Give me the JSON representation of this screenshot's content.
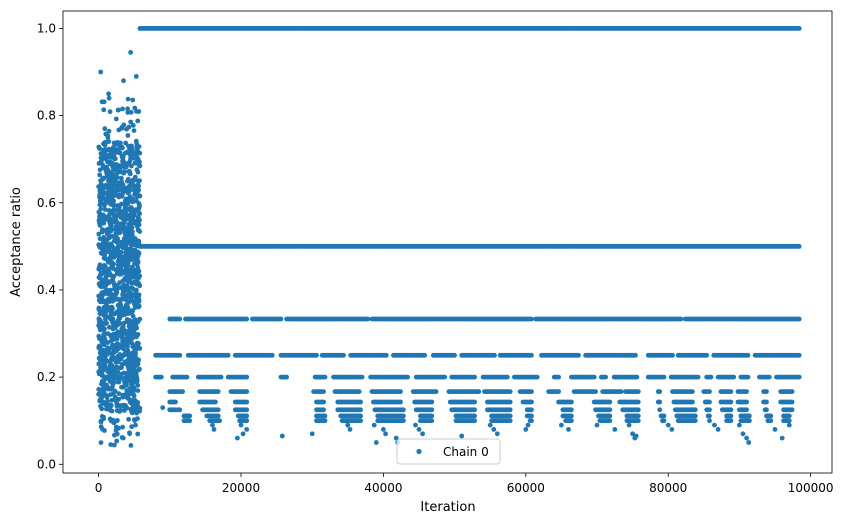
{
  "chart_data": {
    "type": "scatter",
    "title": "",
    "xlabel": "Iteration",
    "ylabel": "Acceptance ratio",
    "xlim": [
      -5000,
      103000
    ],
    "ylim": [
      -0.02,
      1.04
    ],
    "xticks": [
      0,
      20000,
      40000,
      60000,
      80000,
      100000
    ],
    "xtick_labels": [
      "0",
      "20000",
      "40000",
      "60000",
      "80000",
      "100000"
    ],
    "yticks": [
      0.0,
      0.2,
      0.4,
      0.6,
      0.8,
      1.0
    ],
    "ytick_labels": [
      "0.0",
      "0.2",
      "0.4",
      "0.6",
      "0.8",
      "1.0"
    ],
    "grid": false,
    "legend": {
      "position": "lower-center",
      "entries": [
        "Chain 0"
      ]
    },
    "series": [
      {
        "name": "Chain 0",
        "color": "#1f77b4",
        "marker": "point",
        "burn_in": {
          "x_range": [
            0,
            5800
          ],
          "y_range": [
            0.04,
            0.94
          ],
          "outliers": [
            [
              300,
              0.9
            ],
            [
              3500,
              0.88
            ],
            [
              4500,
              0.945
            ],
            [
              5300,
              0.89
            ],
            [
              1400,
              0.85
            ]
          ]
        },
        "levels": [
          {
            "y": 1.0,
            "x_range": [
              5800,
              98500
            ],
            "gaps": []
          },
          {
            "y": 0.5,
            "x_range": [
              5800,
              98500
            ],
            "gaps": []
          },
          {
            "y": 0.3333,
            "x_range": [
              10000,
              98500
            ],
            "gaps": [
              [
                11500,
                12000
              ],
              [
                21000,
                21500
              ],
              [
                25800,
                26200
              ],
              [
                38000,
                38300
              ],
              [
                61000,
                61300
              ],
              [
                82000,
                82300
              ]
            ]
          },
          {
            "y": 0.25,
            "x_range": [
              8000,
              98500
            ],
            "gaps": [
              [
                11500,
                12500
              ],
              [
                18300,
                19000
              ],
              [
                24500,
                25500
              ],
              [
                30800,
                31200
              ],
              [
                34600,
                35200
              ],
              [
                40600,
                41200
              ],
              [
                46000,
                46800
              ],
              [
                50200,
                50800
              ],
              [
                55800,
                56300
              ],
              [
                61000,
                62000
              ],
              [
                67600,
                68200
              ],
              [
                75600,
                77000
              ],
              [
                80800,
                81300
              ],
              [
                85600,
                86200
              ],
              [
                91400,
                92000
              ]
            ]
          },
          {
            "y": 0.2,
            "x_range": [
              8000,
              98500
            ],
            "gaps": [
              [
                9000,
                10200
              ],
              [
                12500,
                13800
              ],
              [
                17300,
                18000
              ],
              [
                20900,
                25500
              ],
              [
                26500,
                30200
              ],
              [
                32000,
                32800
              ],
              [
                37200,
                38000
              ],
              [
                43600,
                44500
              ],
              [
                48800,
                49500
              ],
              [
                53000,
                53800
              ],
              [
                57600,
                58300
              ],
              [
                61700,
                63800
              ],
              [
                64700,
                66200
              ],
              [
                69800,
                70400
              ],
              [
                71300,
                72200
              ],
              [
                75800,
                77000
              ],
              [
                79600,
                80200
              ],
              [
                84300,
                85300
              ],
              [
                86200,
                86800
              ],
              [
                89400,
                90000
              ],
              [
                91300,
                92700
              ],
              [
                94300,
                95000
              ]
            ]
          },
          {
            "y": 0.1667,
            "x_range": [
              10000,
              97500
            ],
            "gaps": [
              [
                12000,
                14000
              ],
              [
                17000,
                18500
              ],
              [
                21000,
                30000
              ],
              [
                31800,
                33000
              ],
              [
                36800,
                38200
              ],
              [
                42500,
                44000
              ],
              [
                47500,
                49000
              ],
              [
                53500,
                54000
              ],
              [
                58000,
                59000
              ],
              [
                61000,
                63000
              ],
              [
                64800,
                66600
              ],
              [
                70000,
                70600
              ],
              [
                73500,
                73900
              ],
              [
                76000,
                78400
              ],
              [
                79000,
                80500
              ],
              [
                83600,
                84800
              ],
              [
                86000,
                87200
              ],
              [
                89000,
                89600
              ],
              [
                91200,
                93200
              ],
              [
                94000,
                95600
              ]
            ]
          },
          {
            "y": 0.1429,
            "x_range": [
              10000,
              97500
            ],
            "gaps": [
              [
                11000,
                14000
              ],
              [
                16500,
                19000
              ],
              [
                21000,
                30500
              ],
              [
                31800,
                33500
              ],
              [
                37000,
                38500
              ],
              [
                42500,
                44200
              ],
              [
                47000,
                49200
              ],
              [
                53000,
                54500
              ],
              [
                58000,
                59500
              ],
              [
                61000,
                64500
              ],
              [
                66500,
                69500
              ],
              [
                72000,
                73000
              ],
              [
                76000,
                78400
              ],
              [
                79000,
                80600
              ],
              [
                83600,
                85000
              ],
              [
                86000,
                87300
              ],
              [
                89000,
                89600
              ],
              [
                91200,
                93300
              ],
              [
                94000,
                95600
              ]
            ]
          },
          {
            "y": 0.125,
            "x_range": [
              10000,
              97500
            ],
            "gaps": [
              [
                11500,
                14500
              ],
              [
                17000,
                19000
              ],
              [
                21000,
                30500
              ],
              [
                31800,
                33500
              ],
              [
                37000,
                38700
              ],
              [
                43000,
                44500
              ],
              [
                47000,
                49500
              ],
              [
                53000,
                54500
              ],
              [
                58000,
                60000
              ],
              [
                61000,
                65000
              ],
              [
                66500,
                69700
              ],
              [
                72000,
                73500
              ],
              [
                76000,
                78600
              ],
              [
                79000,
                80800
              ],
              [
                84000,
                85200
              ],
              [
                86000,
                87500
              ],
              [
                89000,
                89800
              ],
              [
                91200,
                93500
              ],
              [
                94000,
                96000
              ]
            ]
          },
          {
            "y": 0.1111,
            "x_range": [
              12000,
              97000
            ],
            "gaps": [
              [
                13000,
                15000
              ],
              [
                17000,
                19500
              ],
              [
                21000,
                30500
              ],
              [
                32000,
                33800
              ],
              [
                37000,
                39000
              ],
              [
                43000,
                45000
              ],
              [
                47000,
                50000
              ],
              [
                53000,
                55000
              ],
              [
                58000,
                60000
              ],
              [
                61000,
                65000
              ],
              [
                66500,
                70000
              ],
              [
                72000,
                74000
              ],
              [
                76000,
                78800
              ],
              [
                79500,
                81000
              ],
              [
                84000,
                85500
              ],
              [
                86000,
                88000
              ],
              [
                89000,
                90000
              ],
              [
                91500,
                93600
              ],
              [
                94500,
                96000
              ]
            ]
          },
          {
            "y": 0.1,
            "x_range": [
              12000,
              97000
            ],
            "gaps": [
              [
                13000,
                15500
              ],
              [
                17200,
                19700
              ],
              [
                21000,
                30500
              ],
              [
                32000,
                34000
              ],
              [
                37000,
                39000
              ],
              [
                43000,
                45000
              ],
              [
                47000,
                50000
              ],
              [
                53000,
                55000
              ],
              [
                58000,
                60500
              ],
              [
                61000,
                65500
              ],
              [
                66500,
                70200
              ],
              [
                72000,
                74000
              ],
              [
                76000,
                79000
              ],
              [
                79500,
                81200
              ],
              [
                84000,
                85700
              ],
              [
                86000,
                88000
              ],
              [
                89000,
                90000
              ],
              [
                91500,
                93800
              ],
              [
                94500,
                96000
              ]
            ]
          }
        ],
        "sparse_points": [
          [
            16000,
            0.09
          ],
          [
            16200,
            0.08
          ],
          [
            19500,
            0.06
          ],
          [
            20000,
            0.09
          ],
          [
            20300,
            0.07
          ],
          [
            20800,
            0.08
          ],
          [
            25800,
            0.065
          ],
          [
            30000,
            0.07
          ],
          [
            35000,
            0.09
          ],
          [
            35300,
            0.08
          ],
          [
            38700,
            0.09
          ],
          [
            39000,
            0.05
          ],
          [
            40000,
            0.08
          ],
          [
            40300,
            0.07
          ],
          [
            41800,
            0.06
          ],
          [
            42000,
            0.05
          ],
          [
            44500,
            0.09
          ],
          [
            45000,
            0.08
          ],
          [
            45500,
            0.07
          ],
          [
            51000,
            0.065
          ],
          [
            55000,
            0.09
          ],
          [
            55500,
            0.08
          ],
          [
            56000,
            0.07
          ],
          [
            60000,
            0.08
          ],
          [
            60300,
            0.09
          ],
          [
            65000,
            0.09
          ],
          [
            66000,
            0.08
          ],
          [
            70000,
            0.09
          ],
          [
            72500,
            0.08
          ],
          [
            74500,
            0.09
          ],
          [
            75000,
            0.07
          ],
          [
            75300,
            0.06
          ],
          [
            75500,
            0.065
          ],
          [
            80000,
            0.09
          ],
          [
            80500,
            0.08
          ],
          [
            86500,
            0.09
          ],
          [
            87000,
            0.08
          ],
          [
            90000,
            0.09
          ],
          [
            90500,
            0.07
          ],
          [
            91000,
            0.06
          ],
          [
            91300,
            0.05
          ],
          [
            95000,
            0.08
          ],
          [
            96000,
            0.06
          ],
          [
            97000,
            0.09
          ],
          [
            9000,
            0.13
          ],
          [
            10000,
            0.125
          ],
          [
            11000,
            0.2
          ]
        ]
      }
    ]
  }
}
